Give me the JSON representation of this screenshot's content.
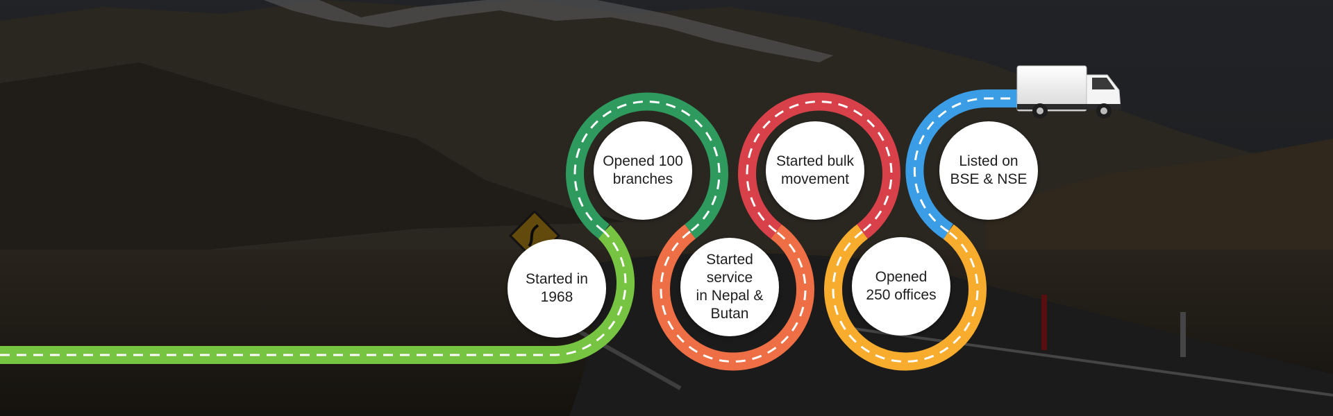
{
  "colors": {
    "green_light": "#76c442",
    "green_dark": "#2e9a5e",
    "orange": "#ee6e45",
    "red": "#d9414a",
    "yellow": "#f8ac2d",
    "blue": "#3b9de6",
    "dash": "#ffffff",
    "overlay": "rgba(0,0,0,0.55)"
  },
  "milestones": [
    {
      "text": "Started in\n1968"
    },
    {
      "text": "Opened 100\nbranches"
    },
    {
      "text": "Started\nservice\nin Nepal &\nButan"
    },
    {
      "text": "Started bulk\nmovement"
    },
    {
      "text": "Opened\n250 offices"
    },
    {
      "text": "Listed on\nBSE & NSE"
    }
  ],
  "icons": [
    "road-sign-icon",
    "truck-icon"
  ]
}
